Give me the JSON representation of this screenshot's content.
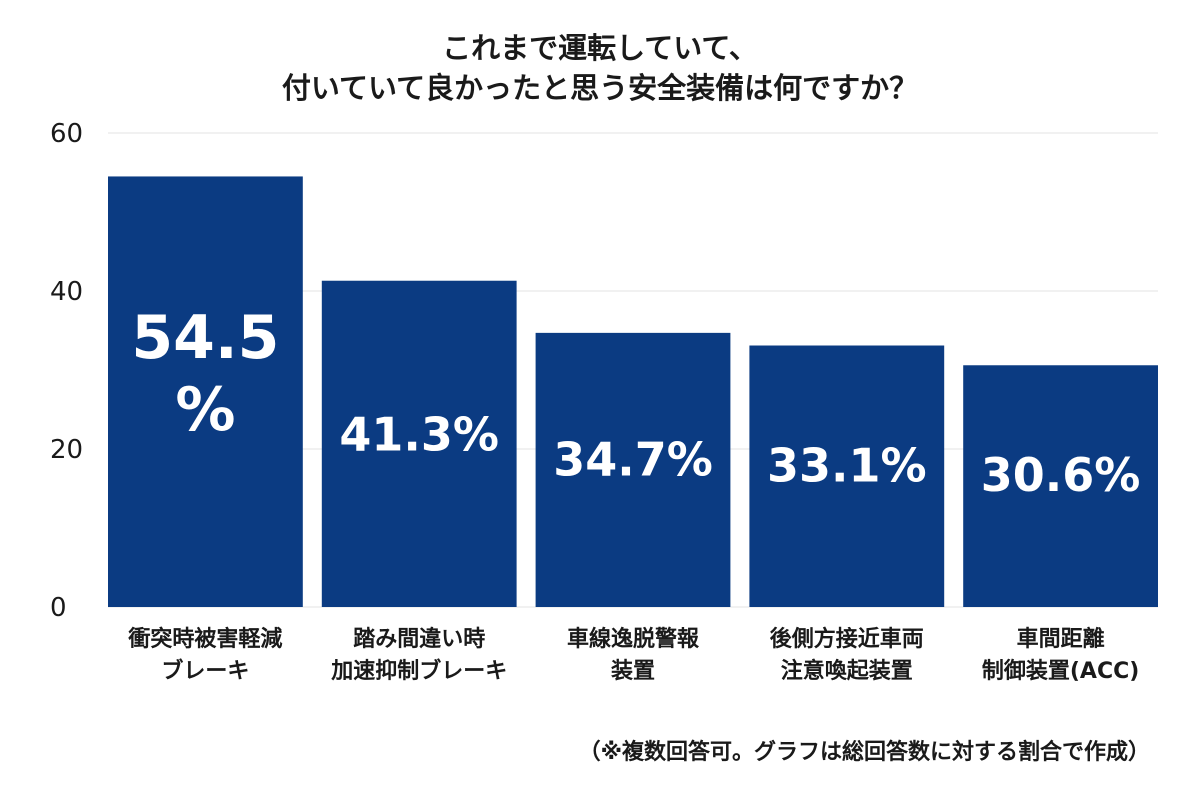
{
  "chart_data": {
    "type": "bar",
    "title_lines": [
      "これまで運転していて、",
      "付いていて良かったと思う安全装備は何ですか？"
    ],
    "categories": [
      [
        "衝突時被害軽減",
        "ブレーキ"
      ],
      [
        "踏み間違い時",
        "加速抑制ブレーキ"
      ],
      [
        "車線逸脱警報",
        "装置"
      ],
      [
        "後側方接近車両",
        "注意喚起装置"
      ],
      [
        "車間距離",
        "制御装置(ACC)"
      ]
    ],
    "values": [
      54.5,
      41.3,
      34.7,
      33.1,
      30.6
    ],
    "value_labels": [
      "54.5%",
      "41.3%",
      "34.7%",
      "33.1%",
      "30.6%"
    ],
    "ylim": [
      0,
      60
    ],
    "yticks": [
      0,
      20,
      40,
      60
    ],
    "grid": true,
    "bar_color": "#0b3b82",
    "grid_color": "#e3e3e3",
    "label_color": "#ffffff"
  },
  "footnote": "（※複数回答可。グラフは総回答数に対する割合で作成）"
}
